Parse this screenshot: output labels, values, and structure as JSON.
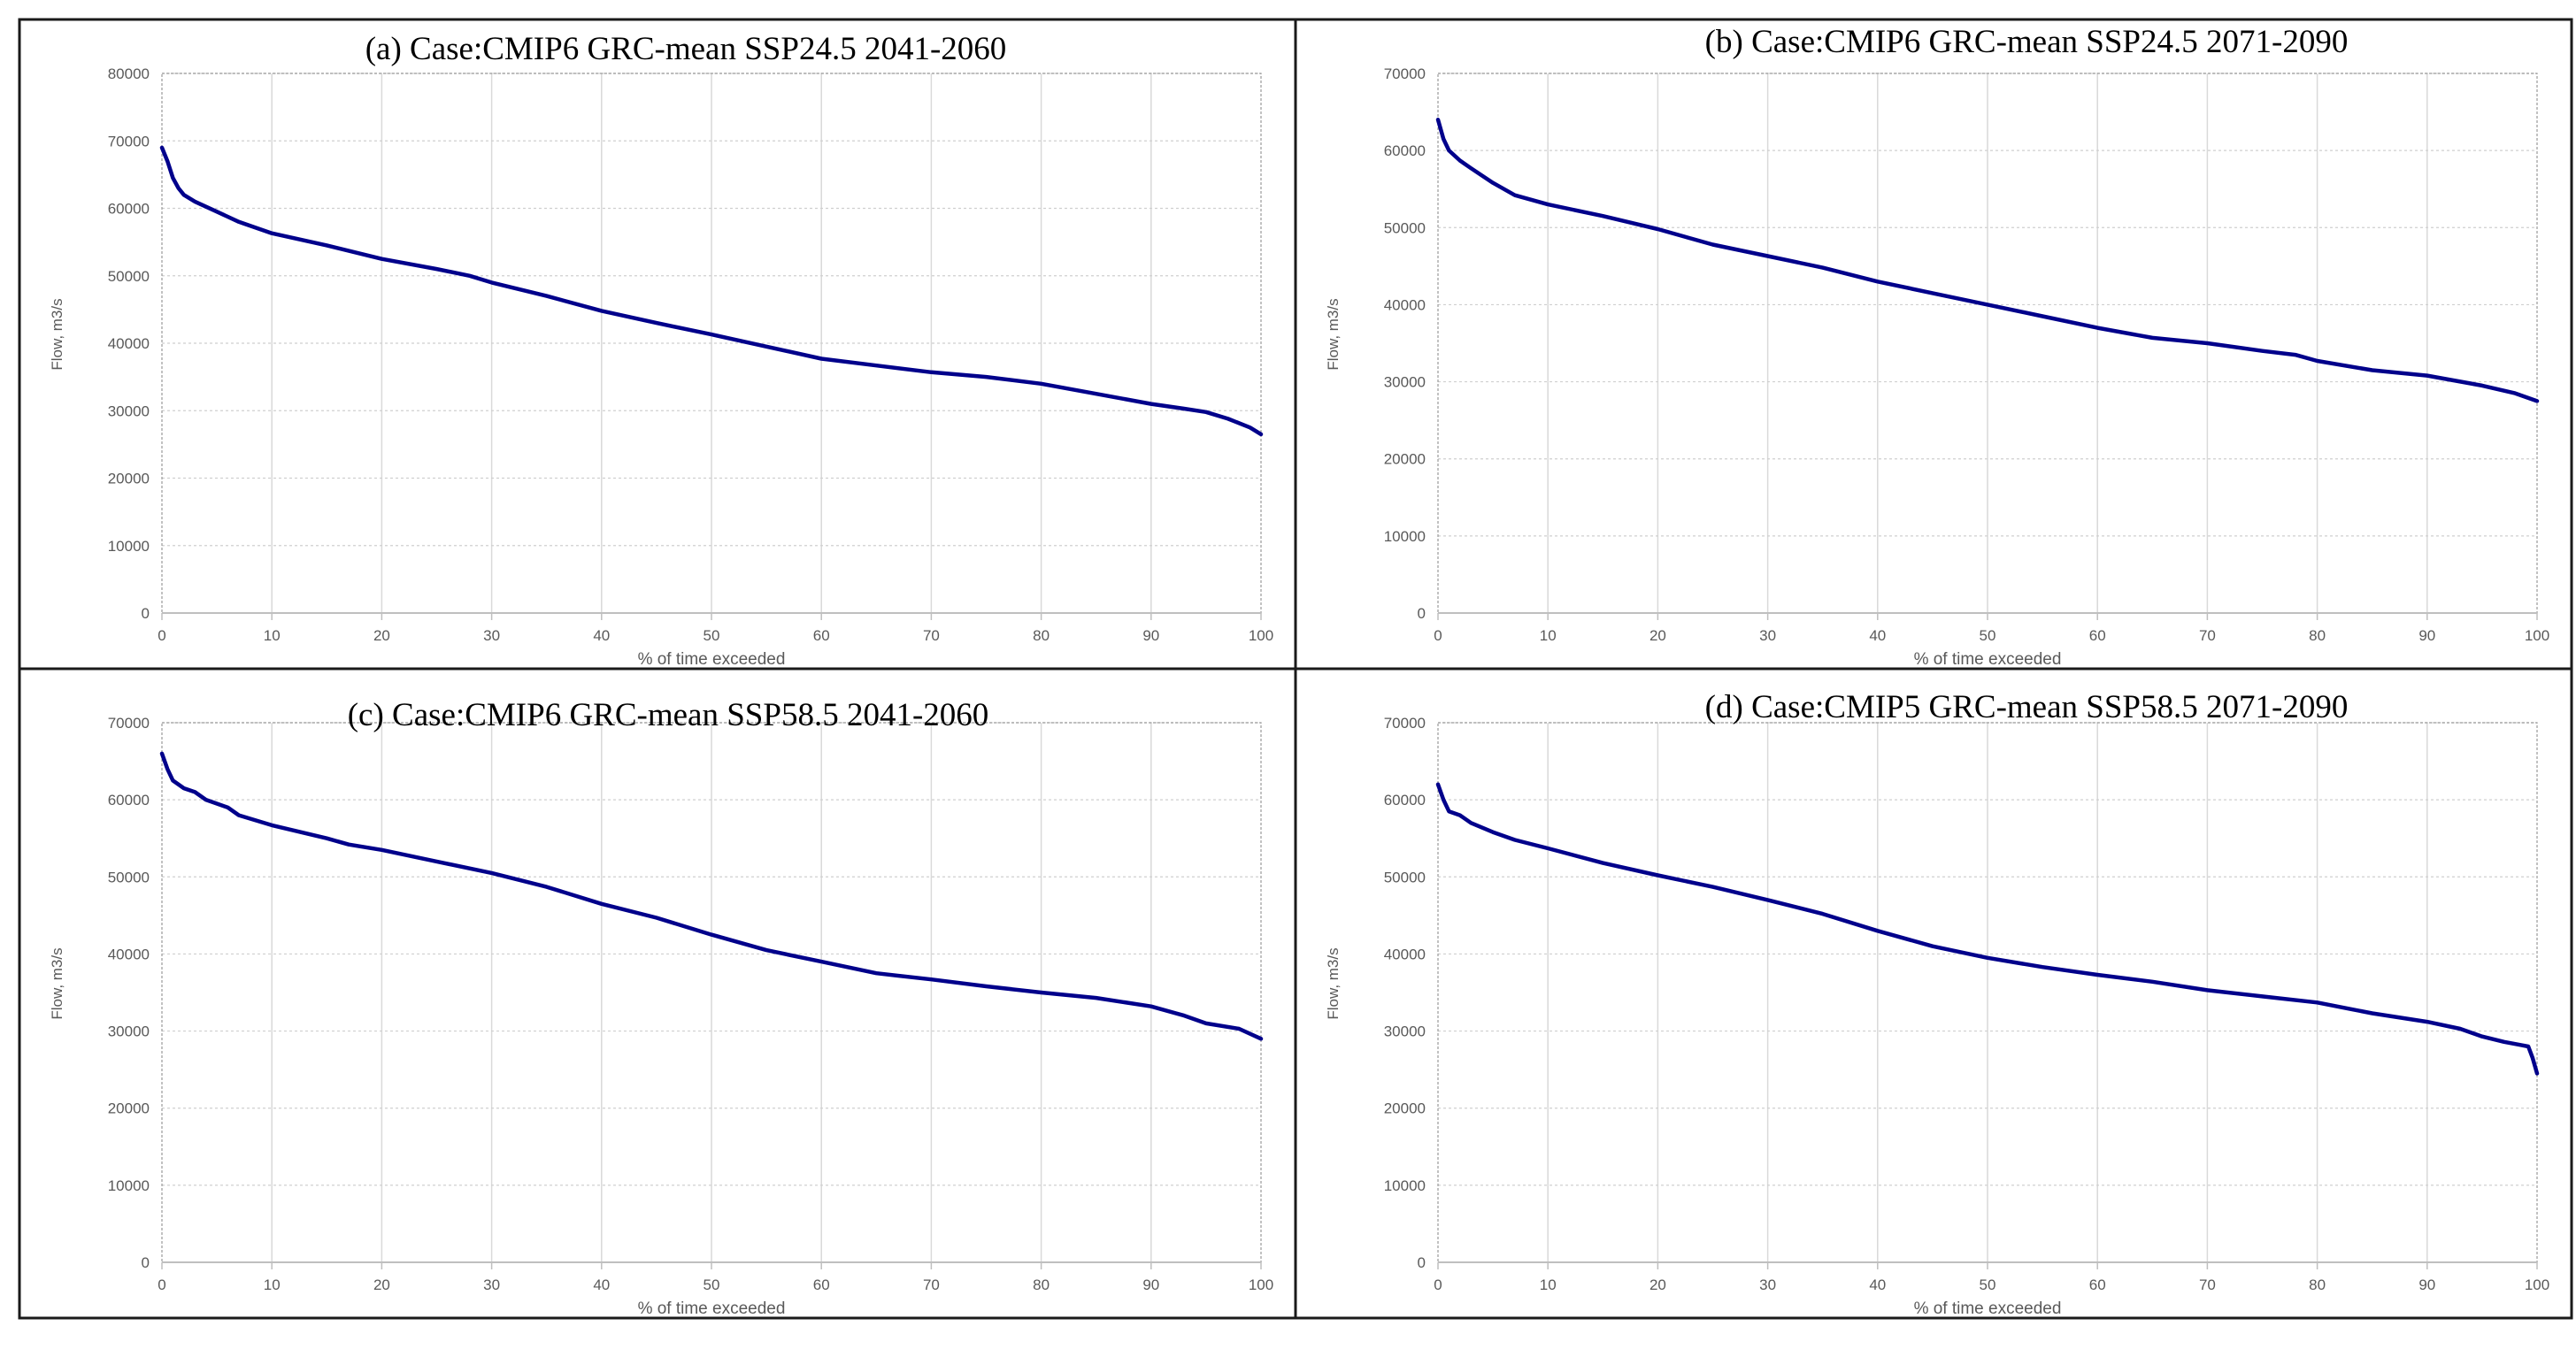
{
  "line_color": "#00008B",
  "grid_color": "#d9d9d9",
  "chart_data": [
    {
      "type": "line",
      "title": "(a)  Case:CMIP6 GRC-mean SSP24.5 2041-2060",
      "xlabel": "% of time exceeded",
      "ylabel": "Flow, m3/s",
      "xlim": [
        0,
        100
      ],
      "ylim": [
        0,
        80000
      ],
      "xticks": [
        0,
        10,
        20,
        30,
        40,
        50,
        60,
        70,
        80,
        90,
        100
      ],
      "yticks": [
        0,
        10000,
        20000,
        30000,
        40000,
        50000,
        60000,
        70000,
        80000
      ],
      "grid": true,
      "series": [
        {
          "x": [
            0,
            0.5,
            1,
            1.5,
            2,
            3,
            5,
            7,
            10,
            15,
            20,
            25,
            28,
            30,
            35,
            40,
            45,
            50,
            55,
            60,
            65,
            70,
            75,
            80,
            85,
            90,
            93,
            95,
            97,
            99,
            100
          ],
          "y": [
            69000,
            67000,
            64500,
            63000,
            62000,
            61000,
            59500,
            58000,
            56300,
            54500,
            52500,
            51000,
            50000,
            49000,
            47000,
            44800,
            43000,
            41300,
            39500,
            37700,
            36700,
            35700,
            35000,
            34000,
            32500,
            31000,
            30300,
            29800,
            28800,
            27500,
            26500
          ]
        }
      ]
    },
    {
      "type": "line",
      "title": "(b)  Case:CMIP6 GRC-mean SSP24.5 2071-2090",
      "xlabel": "% of time exceeded",
      "ylabel": "Flow, m3/s",
      "xlim": [
        0,
        100
      ],
      "ylim": [
        0,
        70000
      ],
      "xticks": [
        0,
        10,
        20,
        30,
        40,
        50,
        60,
        70,
        80,
        90,
        100
      ],
      "yticks": [
        0,
        10000,
        20000,
        30000,
        40000,
        50000,
        60000,
        70000
      ],
      "grid": true,
      "series": [
        {
          "x": [
            0,
            0.5,
            1,
            2,
            3,
            5,
            7,
            10,
            15,
            20,
            25,
            30,
            35,
            40,
            45,
            50,
            55,
            60,
            65,
            70,
            75,
            78,
            80,
            85,
            90,
            95,
            98,
            100
          ],
          "y": [
            64000,
            61500,
            60000,
            58700,
            57700,
            55800,
            54200,
            53000,
            51500,
            49800,
            47800,
            46300,
            44800,
            43000,
            41500,
            40000,
            38500,
            37000,
            35700,
            35000,
            34000,
            33500,
            32700,
            31500,
            30800,
            29500,
            28500,
            27500
          ]
        }
      ]
    },
    {
      "type": "line",
      "title": "(c)  Case:CMIP6 GRC-mean SSP58.5 2041-2060",
      "xlabel": "% of time exceeded",
      "ylabel": "Flow, m3/s",
      "xlim": [
        0,
        100
      ],
      "ylim": [
        0,
        70000
      ],
      "xticks": [
        0,
        10,
        20,
        30,
        40,
        50,
        60,
        70,
        80,
        90,
        100
      ],
      "yticks": [
        0,
        10000,
        20000,
        30000,
        40000,
        50000,
        60000,
        70000
      ],
      "grid": true,
      "series": [
        {
          "x": [
            0,
            0.5,
            1,
            2,
            3,
            4,
            6,
            7,
            10,
            15,
            17,
            20,
            25,
            30,
            35,
            40,
            45,
            50,
            55,
            60,
            65,
            70,
            75,
            80,
            85,
            90,
            93,
            95,
            98,
            100
          ],
          "y": [
            66000,
            64000,
            62500,
            61500,
            61000,
            60000,
            59000,
            58000,
            56700,
            55000,
            54200,
            53500,
            52000,
            50500,
            48700,
            46500,
            44700,
            42500,
            40500,
            39000,
            37500,
            36700,
            35800,
            35000,
            34300,
            33200,
            32000,
            31000,
            30300,
            29000
          ]
        }
      ]
    },
    {
      "type": "line",
      "title": "(d)  Case:CMIP5 GRC-mean SSP58.5 2071-2090",
      "xlabel": "% of time exceeded",
      "ylabel": "Flow, m3/s",
      "xlim": [
        0,
        100
      ],
      "ylim": [
        0,
        70000
      ],
      "xticks": [
        0,
        10,
        20,
        30,
        40,
        50,
        60,
        70,
        80,
        90,
        100
      ],
      "yticks": [
        0,
        10000,
        20000,
        30000,
        40000,
        50000,
        60000,
        70000
      ],
      "grid": true,
      "series": [
        {
          "x": [
            0,
            0.5,
            1,
            2,
            3,
            5,
            7,
            10,
            15,
            20,
            25,
            30,
            35,
            40,
            45,
            50,
            55,
            60,
            65,
            70,
            75,
            80,
            85,
            90,
            93,
            95,
            97,
            98.5,
            99.2,
            99.6,
            100
          ],
          "y": [
            62000,
            60000,
            58500,
            58000,
            57000,
            55800,
            54800,
            53700,
            51800,
            50200,
            48700,
            47000,
            45200,
            43000,
            41000,
            39500,
            38300,
            37300,
            36400,
            35300,
            34500,
            33700,
            32300,
            31200,
            30300,
            29300,
            28600,
            28200,
            28000,
            26500,
            24500
          ]
        }
      ]
    }
  ]
}
